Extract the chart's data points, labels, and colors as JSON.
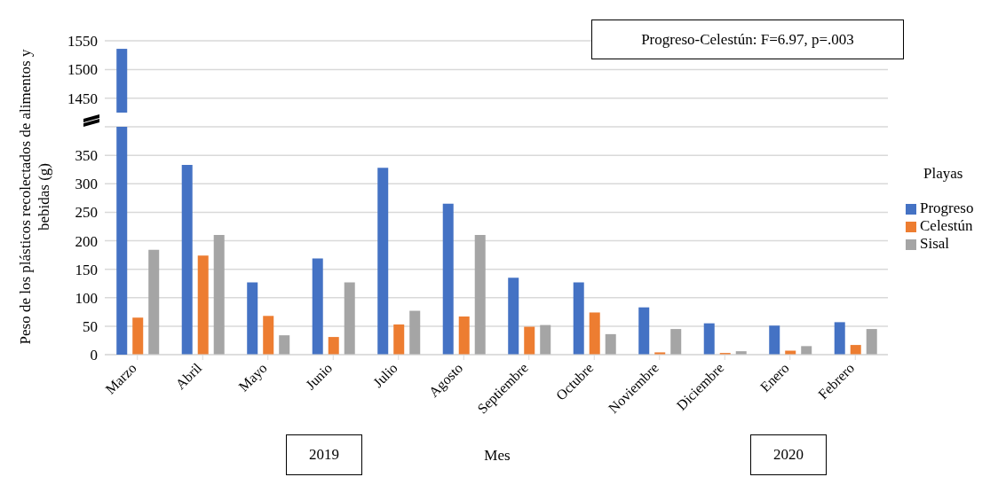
{
  "chart_data": [
    {
      "type": "bar",
      "series": [
        {
          "color": "#4472c4",
          "values": [
            1536,
            null,
            null,
            null,
            null,
            null,
            null,
            null,
            null,
            null,
            null,
            null
          ]
        },
        {
          "color": "#ed7d31",
          "values": [
            null,
            null,
            null,
            null,
            null,
            null,
            null,
            null,
            null,
            null,
            null,
            null
          ]
        },
        {
          "color": "#a5a5a5",
          "values": [
            null,
            null,
            null,
            null,
            null,
            null,
            null,
            null,
            null,
            null,
            null,
            null
          ]
        }
      ],
      "ylim": [
        1425,
        1550
      ],
      "yticks": [
        1450,
        1500,
        1550
      ],
      "grid": "y",
      "tick_labels": "y",
      "annotations": [
        "Progreso-Celestún: F=6.97, p=.003"
      ]
    },
    {
      "type": "bar",
      "categories": [
        "Marzo",
        "Abril",
        "Mayo",
        "Junio",
        "Julio",
        "Agosto",
        "Septiembre",
        "Octubre",
        "Noviembre",
        "Diciembre",
        "Enero",
        "Febrero"
      ],
      "series": [
        {
          "name": "Progreso",
          "color": "#4472c4",
          "values": [
            null,
            333,
            127,
            169,
            328,
            265,
            135,
            127,
            83,
            55,
            51,
            57
          ]
        },
        {
          "name": "Celestún",
          "color": "#ed7d31",
          "values": [
            65,
            174,
            68,
            31,
            53,
            67,
            49,
            74,
            4,
            3,
            7,
            17
          ]
        },
        {
          "name": "Sisal",
          "color": "#a5a5a5",
          "values": [
            184,
            210,
            34,
            127,
            77,
            210,
            52,
            36,
            45,
            6,
            15,
            45
          ]
        }
      ],
      "ylim": [
        0,
        400
      ],
      "yticks": [
        0,
        50,
        100,
        150,
        200,
        250,
        300,
        350,
        {
          "value": 400,
          "label": null
        }
      ],
      "grid": "y",
      "legend": "right",
      "legend_title": "Playas",
      "xlabel": "Mes",
      "ylabel": "Peso de los plásticos recolectados de alimentos y bebidas (g)",
      "annotations": [
        "2019",
        "2020"
      ]
    }
  ]
}
